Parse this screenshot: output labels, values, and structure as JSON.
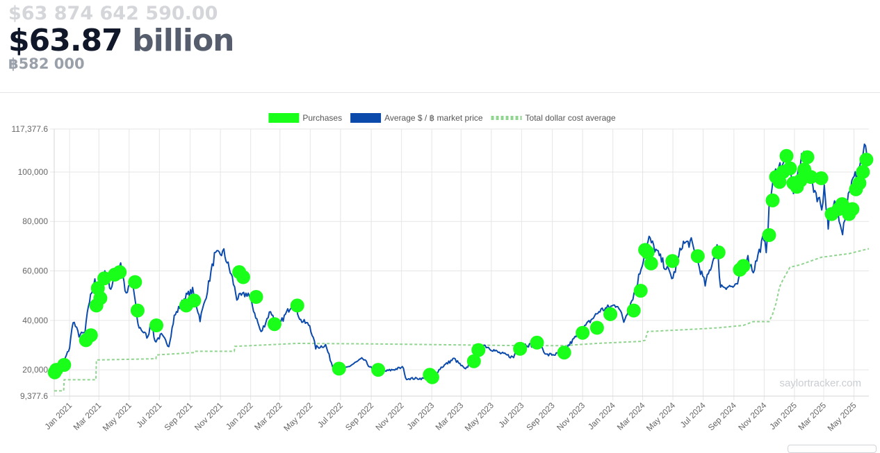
{
  "header": {
    "usd_full": "$63 874 642 590.00",
    "usd_short_number": "$63.87",
    "usd_short_unit": "billion",
    "btc_amount": "฿582 000"
  },
  "watermark": "saylortracker.com",
  "colors": {
    "purchases": "#19ff19",
    "market_price": "#0b4aab",
    "dollar_cost_average": "#8fd48f",
    "grid": "#e6e6e6"
  },
  "chart_data": {
    "type": "line",
    "title": "",
    "xlabel": "",
    "ylabel": "",
    "ylim": [
      9377.6,
      117377.6
    ],
    "y_ticks": [
      "9,377.6",
      "20,000",
      "40,000",
      "60,000",
      "80,000",
      "100,000",
      "117,377.6"
    ],
    "y_tick_values": [
      9377.6,
      20000,
      40000,
      60000,
      80000,
      100000,
      117377.6
    ],
    "x_range": [
      "2020-12-01",
      "2025-05-31"
    ],
    "x_ticks": [
      "Jan 2021",
      "Mar 2021",
      "May 2021",
      "Jul 2021",
      "Sep 2021",
      "Nov 2021",
      "Jan 2022",
      "Mar 2022",
      "May 2022",
      "Jul 2022",
      "Sep 2022",
      "Nov 2022",
      "Jan 2023",
      "Mar 2023",
      "May 2023",
      "Jul 2023",
      "Sep 2023",
      "Nov 2023",
      "Jan 2024",
      "Mar 2024",
      "May 2024",
      "Jul 2024",
      "Sep 2024",
      "Nov 2024",
      "Jan 2025",
      "Mar 2025",
      "May 2025"
    ],
    "x_tick_dates": [
      "2021-01-01",
      "2021-03-01",
      "2021-05-01",
      "2021-07-01",
      "2021-09-01",
      "2021-11-01",
      "2022-01-01",
      "2022-03-01",
      "2022-05-01",
      "2022-07-01",
      "2022-09-01",
      "2022-11-01",
      "2023-01-01",
      "2023-03-01",
      "2023-05-01",
      "2023-07-01",
      "2023-09-01",
      "2023-11-01",
      "2024-01-01",
      "2024-03-01",
      "2024-05-01",
      "2024-07-01",
      "2024-09-01",
      "2024-11-01",
      "2025-01-01",
      "2025-03-01",
      "2025-05-01"
    ],
    "grid": true,
    "legend_position": "top-center",
    "series": [
      {
        "name": "Purchases",
        "type": "scatter",
        "points": [
          [
            "2020-12-02",
            19000
          ],
          [
            "2020-12-05",
            20000
          ],
          [
            "2020-12-21",
            22000
          ],
          [
            "2021-02-03",
            32000
          ],
          [
            "2021-02-13",
            34000
          ],
          [
            "2021-02-24",
            46000
          ],
          [
            "2021-02-27",
            53000
          ],
          [
            "2021-03-04",
            49000
          ],
          [
            "2021-03-12",
            57000
          ],
          [
            "2021-04-02",
            58500
          ],
          [
            "2021-04-12",
            59500
          ],
          [
            "2021-05-13",
            55500
          ],
          [
            "2021-05-18",
            44000
          ],
          [
            "2021-06-25",
            38000
          ],
          [
            "2021-08-24",
            46000
          ],
          [
            "2021-09-09",
            48000
          ],
          [
            "2021-12-09",
            59500
          ],
          [
            "2021-12-17",
            57500
          ],
          [
            "2022-01-12",
            49500
          ],
          [
            "2022-02-18",
            38500
          ],
          [
            "2022-04-05",
            46000
          ],
          [
            "2022-06-28",
            20500
          ],
          [
            "2022-09-15",
            20000
          ],
          [
            "2022-12-28",
            18000
          ],
          [
            "2023-01-02",
            17000
          ],
          [
            "2023-03-27",
            23500
          ],
          [
            "2023-04-05",
            28000
          ],
          [
            "2023-06-28",
            28500
          ],
          [
            "2023-08-01",
            31000
          ],
          [
            "2023-09-25",
            27000
          ],
          [
            "2023-11-01",
            35000
          ],
          [
            "2023-11-30",
            37000
          ],
          [
            "2023-12-27",
            42500
          ],
          [
            "2024-02-12",
            44000
          ],
          [
            "2024-02-26",
            52000
          ],
          [
            "2024-03-06",
            68500
          ],
          [
            "2024-03-11",
            67500
          ],
          [
            "2024-03-18",
            63000
          ],
          [
            "2024-04-30",
            64000
          ],
          [
            "2024-06-20",
            66000
          ],
          [
            "2024-08-01",
            67500
          ],
          [
            "2024-09-13",
            60500
          ],
          [
            "2024-09-20",
            62000
          ],
          [
            "2024-11-11",
            74500
          ],
          [
            "2024-11-18",
            88500
          ],
          [
            "2024-11-25",
            98000
          ],
          [
            "2024-12-02",
            96000
          ],
          [
            "2024-12-09",
            100000
          ],
          [
            "2024-12-16",
            106500
          ],
          [
            "2024-12-23",
            101500
          ],
          [
            "2024-12-30",
            95500
          ],
          [
            "2025-01-06",
            94000
          ],
          [
            "2025-01-13",
            96500
          ],
          [
            "2025-01-21",
            101000
          ],
          [
            "2025-01-27",
            106000
          ],
          [
            "2025-02-03",
            98000
          ],
          [
            "2025-02-24",
            97500
          ],
          [
            "2025-03-17",
            83000
          ],
          [
            "2025-03-31",
            85000
          ],
          [
            "2025-04-07",
            87000
          ],
          [
            "2025-04-14",
            85000
          ],
          [
            "2025-04-21",
            83000
          ],
          [
            "2025-04-28",
            85000
          ],
          [
            "2025-05-05",
            93000
          ],
          [
            "2025-05-12",
            95500
          ],
          [
            "2025-05-19",
            100000
          ],
          [
            "2025-05-26",
            105000
          ]
        ]
      },
      {
        "name": "Average $ / ฿ market price",
        "type": "line",
        "points": [
          [
            "2020-12-01",
            19000
          ],
          [
            "2020-12-15",
            20500
          ],
          [
            "2021-01-01",
            29000
          ],
          [
            "2021-01-08",
            40000
          ],
          [
            "2021-01-20",
            34000
          ],
          [
            "2021-02-01",
            35000
          ],
          [
            "2021-02-08",
            46000
          ],
          [
            "2021-02-21",
            57000
          ],
          [
            "2021-03-01",
            46000
          ],
          [
            "2021-03-13",
            60000
          ],
          [
            "2021-03-25",
            53000
          ],
          [
            "2021-04-14",
            63500
          ],
          [
            "2021-04-25",
            50000
          ],
          [
            "2021-05-07",
            57000
          ],
          [
            "2021-05-19",
            38000
          ],
          [
            "2021-06-08",
            33000
          ],
          [
            "2021-06-14",
            40000
          ],
          [
            "2021-06-22",
            31500
          ],
          [
            "2021-07-05",
            34000
          ],
          [
            "2021-07-20",
            29800
          ],
          [
            "2021-07-31",
            41500
          ],
          [
            "2021-08-22",
            49500
          ],
          [
            "2021-09-06",
            52000
          ],
          [
            "2021-09-21",
            40500
          ],
          [
            "2021-10-01",
            48000
          ],
          [
            "2021-10-20",
            66000
          ],
          [
            "2021-11-08",
            67500
          ],
          [
            "2021-11-25",
            57000
          ],
          [
            "2021-12-04",
            49000
          ],
          [
            "2021-12-27",
            51000
          ],
          [
            "2022-01-22",
            35000
          ],
          [
            "2022-02-10",
            44000
          ],
          [
            "2022-02-24",
            37000
          ],
          [
            "2022-03-28",
            47500
          ],
          [
            "2022-04-12",
            40000
          ],
          [
            "2022-04-30",
            38000
          ],
          [
            "2022-05-12",
            29000
          ],
          [
            "2022-06-01",
            30000
          ],
          [
            "2022-06-15",
            21500
          ],
          [
            "2022-07-01",
            19500
          ],
          [
            "2022-08-15",
            24500
          ],
          [
            "2022-09-05",
            19800
          ],
          [
            "2022-10-01",
            19500
          ],
          [
            "2022-11-05",
            21000
          ],
          [
            "2022-11-09",
            16500
          ],
          [
            "2022-12-31",
            16500
          ],
          [
            "2023-01-20",
            21000
          ],
          [
            "2023-02-15",
            24500
          ],
          [
            "2023-03-10",
            20000
          ],
          [
            "2023-04-12",
            30500
          ],
          [
            "2023-05-15",
            27000
          ],
          [
            "2023-06-15",
            25000
          ],
          [
            "2023-06-25",
            30500
          ],
          [
            "2023-08-10",
            29500
          ],
          [
            "2023-08-20",
            26000
          ],
          [
            "2023-09-20",
            26500
          ],
          [
            "2023-10-23",
            34500
          ],
          [
            "2023-12-06",
            44000
          ],
          [
            "2024-01-11",
            46500
          ],
          [
            "2024-01-23",
            39500
          ],
          [
            "2024-02-15",
            52000
          ],
          [
            "2024-03-05",
            67000
          ],
          [
            "2024-03-14",
            73000
          ],
          [
            "2024-04-15",
            62000
          ],
          [
            "2024-05-01",
            57000
          ],
          [
            "2024-05-20",
            71000
          ],
          [
            "2024-06-07",
            71500
          ],
          [
            "2024-07-05",
            54500
          ],
          [
            "2024-07-29",
            69500
          ],
          [
            "2024-08-05",
            54000
          ],
          [
            "2024-09-06",
            53500
          ],
          [
            "2024-09-27",
            66000
          ],
          [
            "2024-10-10",
            60000
          ],
          [
            "2024-10-29",
            72500
          ],
          [
            "2024-11-05",
            69000
          ],
          [
            "2024-11-13",
            90000
          ],
          [
            "2024-11-22",
            99000
          ],
          [
            "2024-12-05",
            103000
          ],
          [
            "2024-12-17",
            106500
          ],
          [
            "2024-12-30",
            93000
          ],
          [
            "2025-01-20",
            108000
          ],
          [
            "2025-02-02",
            97000
          ],
          [
            "2025-02-25",
            86000
          ],
          [
            "2025-03-02",
            94000
          ],
          [
            "2025-03-10",
            79000
          ],
          [
            "2025-03-25",
            88000
          ],
          [
            "2025-04-08",
            76500
          ],
          [
            "2025-04-22",
            93500
          ],
          [
            "2025-05-08",
            100000
          ],
          [
            "2025-05-22",
            109000
          ],
          [
            "2025-05-31",
            107000
          ]
        ]
      },
      {
        "name": "Total dollar cost average",
        "type": "line",
        "style": "dashed",
        "points": [
          [
            "2020-12-01",
            11500
          ],
          [
            "2020-12-20",
            11500
          ],
          [
            "2020-12-21",
            16000
          ],
          [
            "2021-02-23",
            16000
          ],
          [
            "2021-02-24",
            24000
          ],
          [
            "2021-06-24",
            24500
          ],
          [
            "2021-06-25",
            26000
          ],
          [
            "2021-09-09",
            27000
          ],
          [
            "2021-09-10",
            27500
          ],
          [
            "2021-11-29",
            27500
          ],
          [
            "2021-11-30",
            29500
          ],
          [
            "2022-04-05",
            30700
          ],
          [
            "2022-09-01",
            30500
          ],
          [
            "2023-06-28",
            29800
          ],
          [
            "2023-09-25",
            29800
          ],
          [
            "2023-11-30",
            30700
          ],
          [
            "2024-02-26",
            31500
          ],
          [
            "2024-03-06",
            32000
          ],
          [
            "2024-03-11",
            35500
          ],
          [
            "2024-06-20",
            36500
          ],
          [
            "2024-08-01",
            37000
          ],
          [
            "2024-09-20",
            38000
          ],
          [
            "2024-10-10",
            39500
          ],
          [
            "2024-11-11",
            39500
          ],
          [
            "2024-11-18",
            42500
          ],
          [
            "2024-11-25",
            47000
          ],
          [
            "2024-12-02",
            53500
          ],
          [
            "2024-12-09",
            56500
          ],
          [
            "2024-12-23",
            61500
          ],
          [
            "2025-01-13",
            62500
          ],
          [
            "2025-02-24",
            65500
          ],
          [
            "2025-04-21",
            67000
          ],
          [
            "2025-05-31",
            69000
          ]
        ]
      }
    ]
  }
}
